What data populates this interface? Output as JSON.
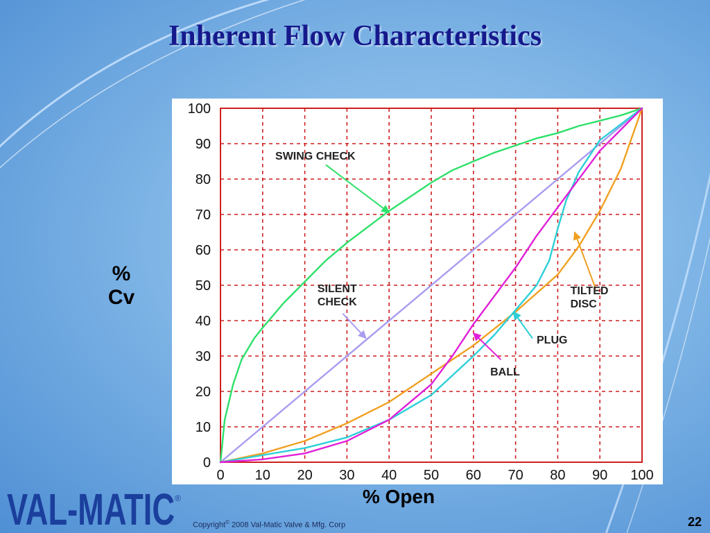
{
  "slide": {
    "title": "Inherent Flow Characteristics",
    "copyright_prefix": "Copyright",
    "copyright_symbol": "©",
    "copyright_rest": " 2008 Val-Matic Valve & Mfg. Corp",
    "page_number": "22",
    "logo": {
      "text": "VAL-MATIC",
      "registered": "®"
    }
  },
  "colors": {
    "background": "#7fb5e6",
    "title": "#16198c",
    "grid": "#cc1f1f",
    "logo": "#1b3f9c"
  },
  "chart_data": {
    "type": "line",
    "title": "",
    "xlabel": "% Open",
    "ylabel": [
      "%",
      "Cv"
    ],
    "xlim": [
      0,
      100
    ],
    "ylim": [
      0,
      100
    ],
    "x_ticks": [
      0,
      10,
      20,
      30,
      40,
      50,
      60,
      70,
      80,
      90,
      100
    ],
    "y_ticks": [
      0,
      10,
      20,
      30,
      40,
      50,
      60,
      70,
      80,
      90,
      100
    ],
    "grid": true,
    "series": [
      {
        "name": "SWING CHECK",
        "color": "#2ee06a",
        "points": [
          [
            0,
            0
          ],
          [
            1,
            12
          ],
          [
            3,
            22
          ],
          [
            5,
            29
          ],
          [
            8,
            35
          ],
          [
            10,
            38
          ],
          [
            15,
            45
          ],
          [
            20,
            51
          ],
          [
            25,
            57
          ],
          [
            30,
            62
          ],
          [
            35,
            66.5
          ],
          [
            40,
            71
          ],
          [
            45,
            75
          ],
          [
            50,
            79
          ],
          [
            55,
            82.5
          ],
          [
            60,
            85
          ],
          [
            65,
            87.5
          ],
          [
            70,
            89.5
          ],
          [
            75,
            91.5
          ],
          [
            80,
            93
          ],
          [
            85,
            95
          ],
          [
            90,
            96.5
          ],
          [
            95,
            98
          ],
          [
            100,
            100
          ]
        ]
      },
      {
        "name": "SILENT CHECK",
        "color": "#a89cf0",
        "points": [
          [
            0,
            0
          ],
          [
            100,
            100
          ]
        ]
      },
      {
        "name": "TILTED DISC",
        "color": "#f0a020",
        "points": [
          [
            0,
            0
          ],
          [
            10,
            2.5
          ],
          [
            20,
            6
          ],
          [
            30,
            11
          ],
          [
            40,
            17
          ],
          [
            50,
            25
          ],
          [
            60,
            33
          ],
          [
            70,
            42.5
          ],
          [
            80,
            53
          ],
          [
            85,
            61
          ],
          [
            90,
            71
          ],
          [
            95,
            83
          ],
          [
            100,
            100
          ]
        ]
      },
      {
        "name": "PLUG",
        "color": "#2ccfd8",
        "points": [
          [
            0,
            0
          ],
          [
            10,
            2
          ],
          [
            20,
            4
          ],
          [
            30,
            7
          ],
          [
            40,
            12
          ],
          [
            50,
            19
          ],
          [
            60,
            30
          ],
          [
            65,
            36
          ],
          [
            70,
            43
          ],
          [
            75,
            50
          ],
          [
            78,
            57
          ],
          [
            80,
            66
          ],
          [
            82,
            74
          ],
          [
            85,
            82
          ],
          [
            90,
            91
          ],
          [
            100,
            100
          ]
        ]
      },
      {
        "name": "BALL",
        "color": "#e020d8",
        "points": [
          [
            0,
            0
          ],
          [
            10,
            0.8
          ],
          [
            20,
            2.5
          ],
          [
            30,
            6
          ],
          [
            40,
            12
          ],
          [
            50,
            22
          ],
          [
            55,
            30
          ],
          [
            60,
            39
          ],
          [
            65,
            47
          ],
          [
            70,
            55
          ],
          [
            75,
            64
          ],
          [
            80,
            72
          ],
          [
            85,
            80
          ],
          [
            90,
            88
          ],
          [
            95,
            94
          ],
          [
            100,
            100
          ]
        ]
      }
    ],
    "annotations": [
      {
        "id": "swing",
        "lines": [
          "SWING CHECK"
        ],
        "text_at": [
          13,
          85.5
        ],
        "arrow_from": [
          25,
          84
        ],
        "arrow_to": [
          40,
          70.5
        ],
        "color": "#2ee06a"
      },
      {
        "id": "silent",
        "lines": [
          "SILENT",
          "CHECK"
        ],
        "text_at": [
          23,
          48
        ],
        "arrow_from": [
          29,
          42
        ],
        "arrow_to": [
          34.5,
          35
        ],
        "color": "#a89cf0"
      },
      {
        "id": "tilted",
        "lines": [
          "TILTED",
          "DISC"
        ],
        "text_at": [
          83,
          47.5
        ],
        "arrow_from": [
          89,
          49
        ],
        "arrow_to": [
          84,
          65
        ],
        "color": "#f0a020"
      },
      {
        "id": "plug",
        "lines": [
          "PLUG"
        ],
        "text_at": [
          75,
          33.5
        ],
        "arrow_from": [
          74,
          35
        ],
        "arrow_to": [
          69.5,
          42.5
        ],
        "color": "#2ccfd8"
      },
      {
        "id": "ball",
        "lines": [
          "BALL"
        ],
        "text_at": [
          64,
          24.5
        ],
        "arrow_from": [
          66.5,
          29
        ],
        "arrow_to": [
          60,
          36.5
        ],
        "color": "#e020d8"
      }
    ]
  }
}
